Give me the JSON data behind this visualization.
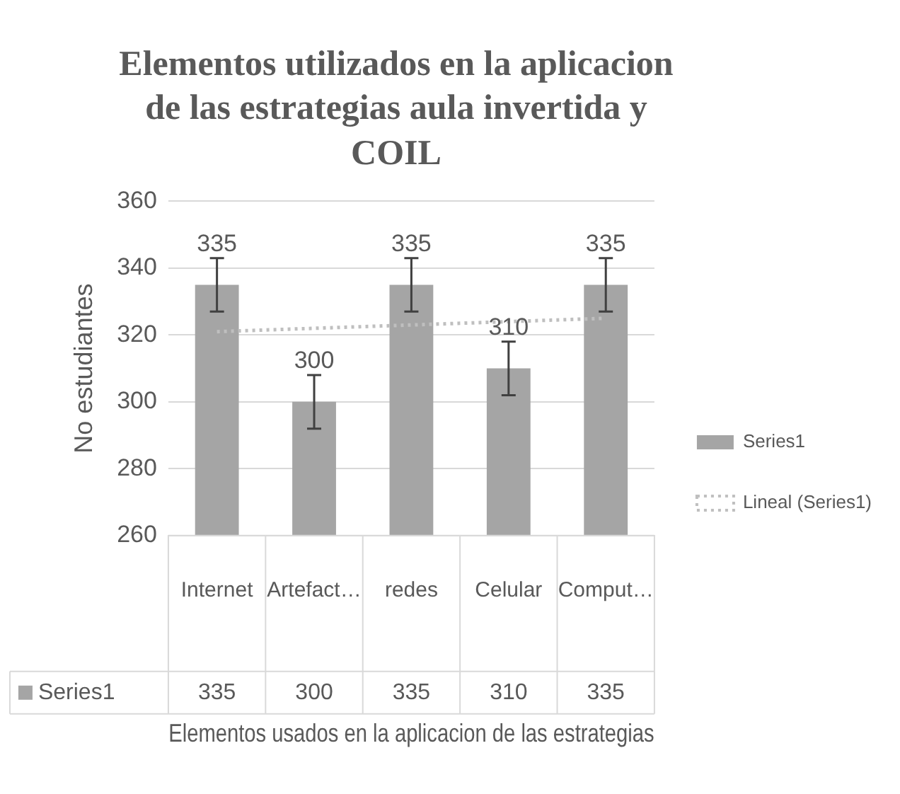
{
  "chart_data": {
    "type": "bar",
    "title": "Elementos utilizados en la aplicacion de las estrategias aula invertida y COIL",
    "xlabel": "Elementos usados en la aplicacion de las estrategias",
    "ylabel": "No estudiantes",
    "categories": [
      "Internet",
      "Artefact…",
      "redes",
      "Celular",
      "Comput…"
    ],
    "series": [
      {
        "name": "Series1",
        "color": "#a5a5a5",
        "values": [
          335,
          300,
          335,
          310,
          335
        ],
        "errors": [
          8,
          8,
          8,
          8,
          8
        ],
        "value_labels": [
          "335",
          "300",
          "335",
          "310",
          "335"
        ]
      },
      {
        "name": "Lineal (Series1)",
        "type": "line",
        "color": "#bfbfbf",
        "values": [
          321,
          322,
          323,
          324,
          325
        ],
        "line_style": "dotted",
        "marker": "none"
      }
    ],
    "ylim": [
      260,
      360
    ],
    "yticks": [
      260,
      280,
      300,
      320,
      340,
      360
    ],
    "grid": "y",
    "legend": "right"
  }
}
